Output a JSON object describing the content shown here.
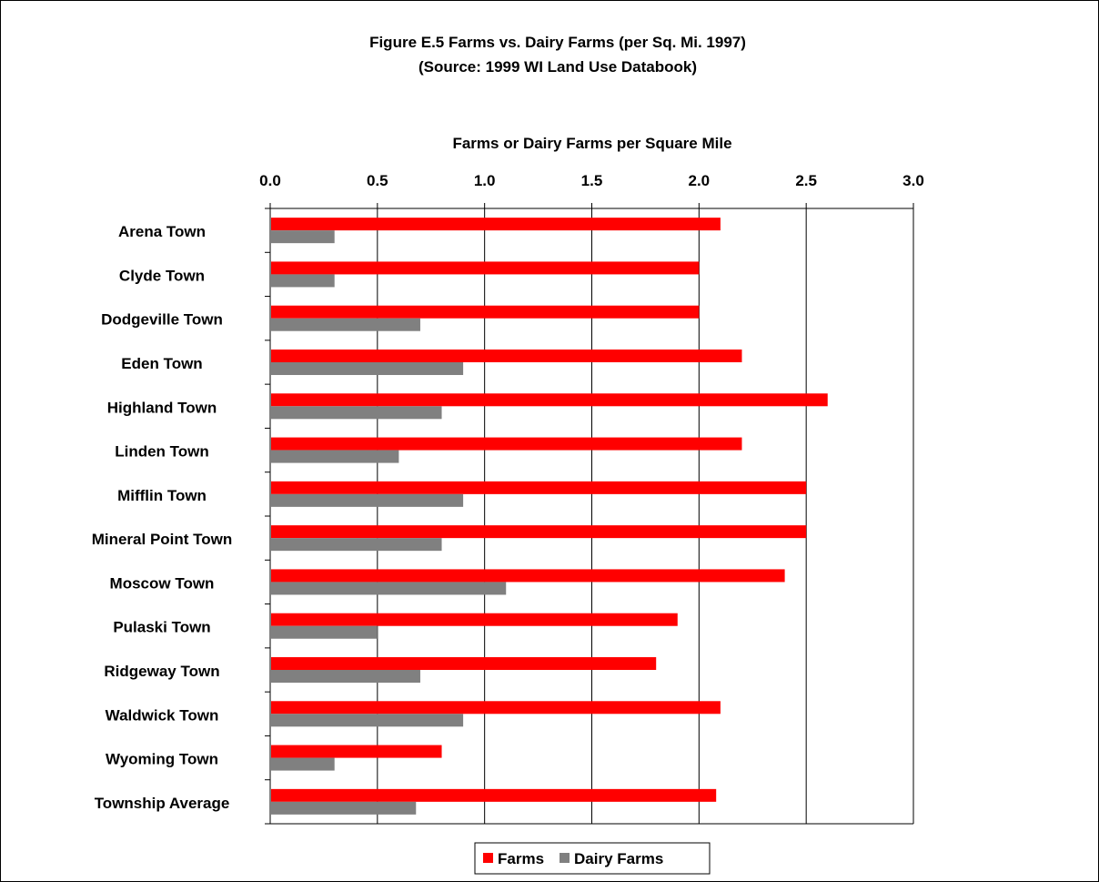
{
  "chart_data": {
    "type": "bar",
    "orientation": "horizontal",
    "title": "Figure E.5 Farms vs. Dairy Farms (per Sq. Mi. 1997)",
    "subtitle": "(Source: 1999 WI Land Use Databook)",
    "xlabel": "Farms or Dairy Farms per Square Mile",
    "ylabel": "",
    "xlim": [
      0,
      3
    ],
    "x_ticks": [
      "0.0",
      "0.5",
      "1.0",
      "1.5",
      "2.0",
      "2.5",
      "3.0"
    ],
    "x_axis_position": "top",
    "grid": "vertical",
    "legend_placement": "bottom-center",
    "categories": [
      "Arena Town",
      "Clyde Town",
      "Dodgeville Town",
      "Eden Town",
      "Highland Town",
      "Linden Town",
      "Mifflin Town",
      "Mineral Point Town",
      "Moscow Town",
      "Pulaski Town",
      "Ridgeway Town",
      "Waldwick Town",
      "Wyoming Town",
      "Township Average"
    ],
    "series": [
      {
        "name": "Farms",
        "color": "#ff0000",
        "values": [
          2.1,
          2.0,
          2.0,
          2.2,
          2.6,
          2.2,
          2.5,
          2.5,
          2.4,
          1.9,
          1.8,
          2.1,
          0.8,
          2.08
        ]
      },
      {
        "name": "Dairy Farms",
        "color": "#808080",
        "values": [
          0.3,
          0.3,
          0.7,
          0.9,
          0.8,
          0.6,
          0.9,
          0.8,
          1.1,
          0.5,
          0.7,
          0.9,
          0.3,
          0.68
        ]
      }
    ]
  }
}
